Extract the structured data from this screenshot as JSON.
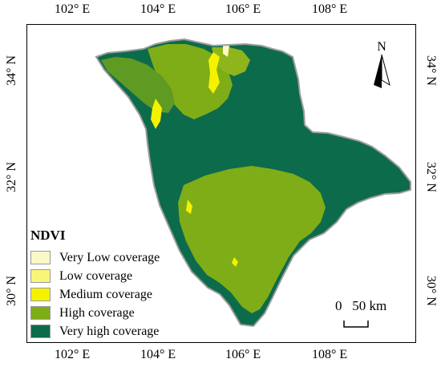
{
  "axes": {
    "top_ticks": [
      "102° E",
      "104° E",
      "106° E",
      "108° E"
    ],
    "bottom_ticks": [
      "102° E",
      "104° E",
      "106° E",
      "108° E"
    ],
    "left_ticks": [
      "34° N",
      "32° N",
      "30° N"
    ],
    "right_ticks": [
      "34° N",
      "32° N",
      "30° N"
    ]
  },
  "north_arrow": {
    "label": "N",
    "icon": "north-arrow-icon"
  },
  "scale_bar": {
    "label": "0   50 km"
  },
  "legend": {
    "title": "NDVI",
    "items": [
      {
        "label": "Very Low coverage",
        "color": "#fbf8c8"
      },
      {
        "label": "Low coverage",
        "color": "#f9f57a"
      },
      {
        "label": "Medium coverage",
        "color": "#f5f200"
      },
      {
        "label": "High coverage",
        "color": "#7fad17"
      },
      {
        "label": "Very high coverage",
        "color": "#0c6b4a"
      }
    ]
  },
  "map_colors": {
    "outline": "#9c9c9c",
    "very_high": "#0c6b4a",
    "high": "#7fad17",
    "medium": "#f5f200"
  }
}
